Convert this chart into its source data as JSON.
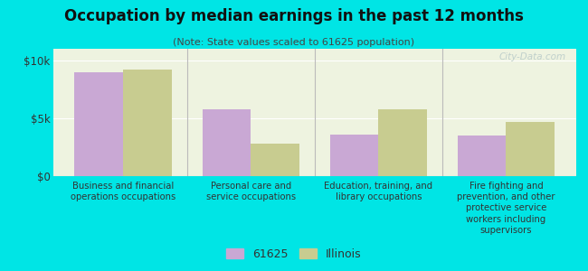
{
  "title": "Occupation by median earnings in the past 12 months",
  "subtitle": "(Note: State values scaled to 61625 population)",
  "categories": [
    "Business and financial\noperations occupations",
    "Personal care and\nservice occupations",
    "Education, training, and\nlibrary occupations",
    "Fire fighting and\nprevention, and other\nprotective service\nworkers including\nsupervisors"
  ],
  "values_61625": [
    9000,
    5800,
    3600,
    3500
  ],
  "values_illinois": [
    9200,
    2800,
    5800,
    4700
  ],
  "color_61625": "#c9a8d4",
  "color_illinois": "#c8cc90",
  "background_outer": "#00e5e5",
  "background_inner": "#eef3e0",
  "ylim": [
    0,
    11000
  ],
  "yticks": [
    0,
    5000,
    10000
  ],
  "ytick_labels": [
    "$0",
    "$5k",
    "$10k"
  ],
  "legend_label_1": "61625",
  "legend_label_2": "Illinois",
  "bar_width": 0.38,
  "watermark": "City-Data.com"
}
